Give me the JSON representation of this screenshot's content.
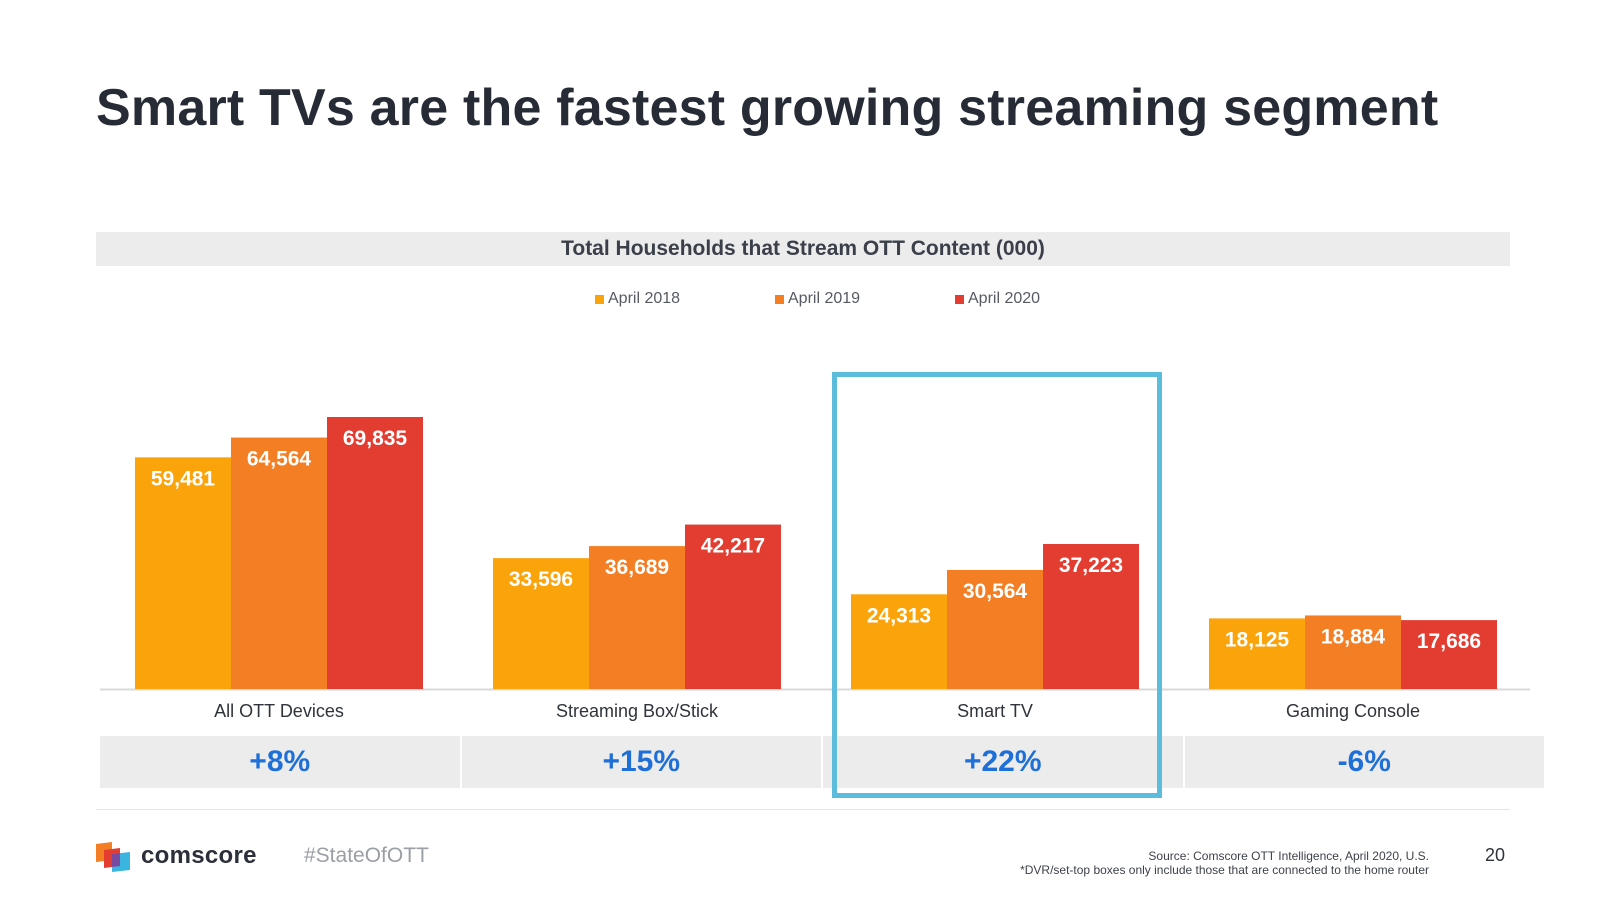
{
  "slide": {
    "title": "Smart TVs are the fastest growing streaming segment",
    "page_number": "20"
  },
  "chart_data": {
    "type": "bar",
    "title": "Total Households that Stream OTT Content (000)",
    "categories": [
      "All OTT Devices",
      "Streaming Box/Stick",
      "Smart TV",
      "Gaming Console"
    ],
    "series": [
      {
        "name": "April 2018",
        "color": "#fba30b",
        "values": [
          59481,
          33596,
          24313,
          18125
        ],
        "labels": [
          "59,481",
          "33,596",
          "24,313",
          "18,125"
        ]
      },
      {
        "name": "April 2019",
        "color": "#f37e23",
        "values": [
          64564,
          36689,
          30564,
          18884
        ],
        "labels": [
          "64,564",
          "36,689",
          "30,564",
          "18,884"
        ]
      },
      {
        "name": "April 2020",
        "color": "#e33c30",
        "values": [
          69835,
          42217,
          37223,
          17686
        ],
        "labels": [
          "69,835",
          "42,217",
          "37,223",
          "17,686"
        ]
      }
    ],
    "growth": [
      "+8%",
      "+15%",
      "+22%",
      "-6%"
    ],
    "highlighted_category": "Smart TV",
    "legend_position": "top-center",
    "grid": false,
    "data_labels": true
  },
  "footer": {
    "brand": "comscore",
    "hashtag": "#StateOfOTT",
    "source": "Source: Comscore OTT Intelligence, April 2020, U.S.",
    "note": "*DVR/set-top boxes only include those that are connected to the home router"
  },
  "colors": {
    "accent_blue": "#1f6fd8",
    "highlight_border": "#5bbcdc",
    "logo_orange": "#f37e23",
    "logo_red": "#e33c30",
    "logo_blue": "#39b5e0"
  }
}
